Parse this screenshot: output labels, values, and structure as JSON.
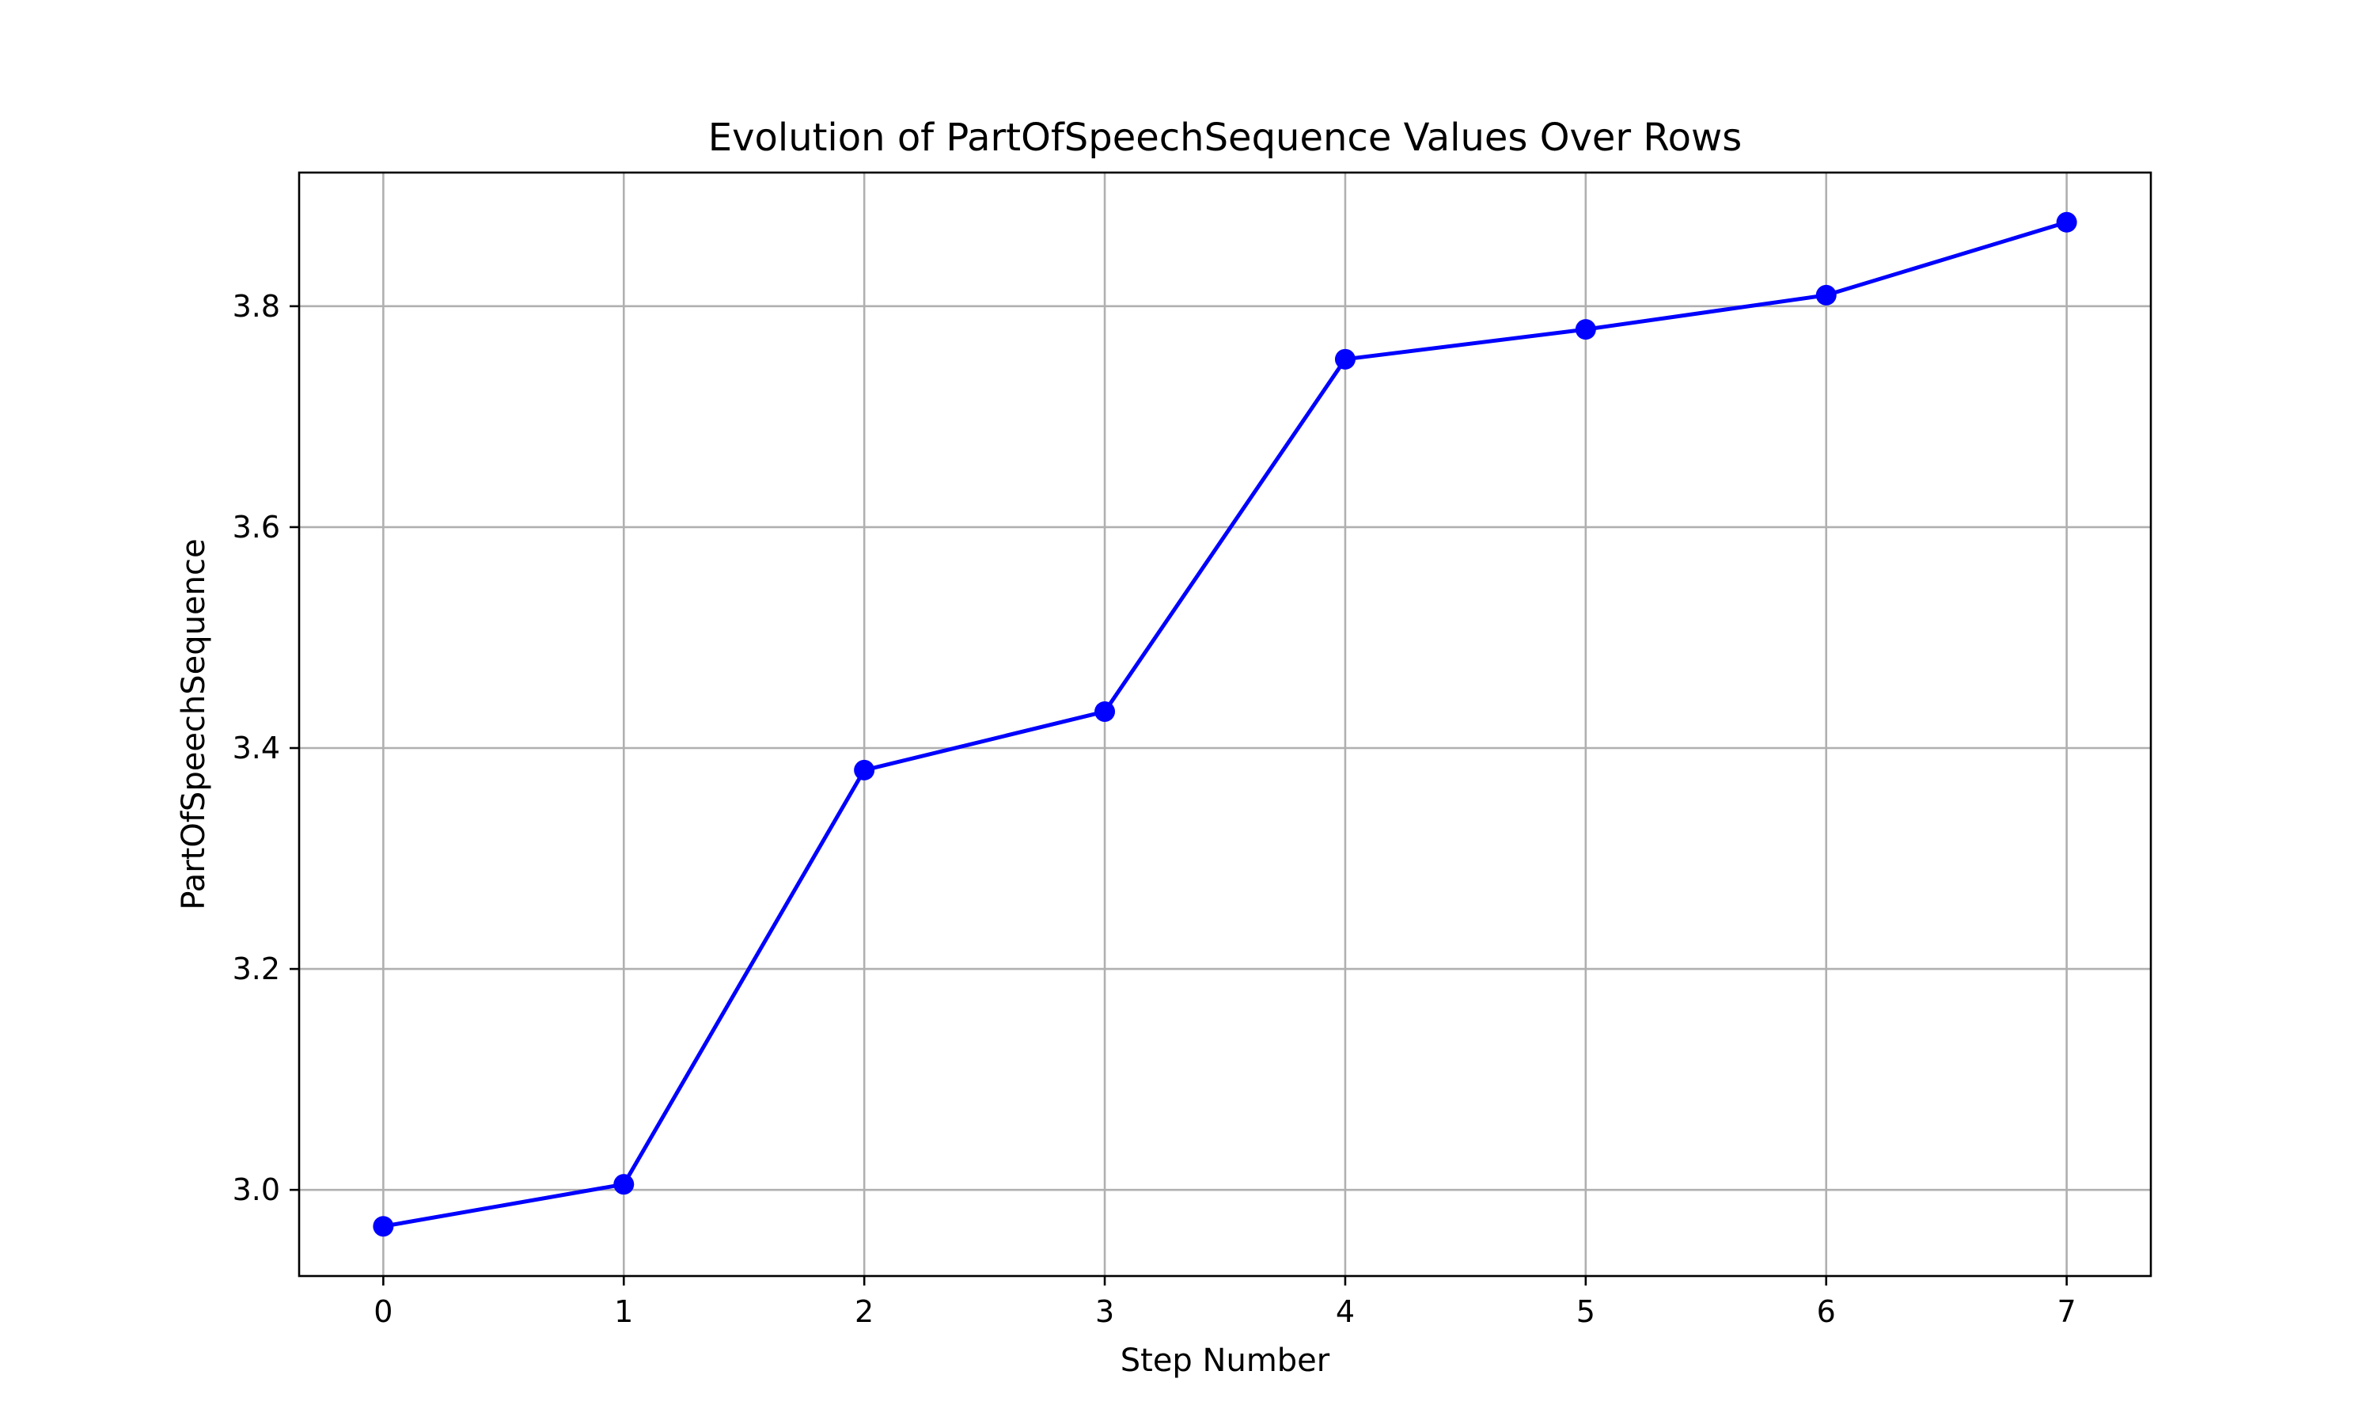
{
  "chart_data": {
    "type": "line",
    "title": "Evolution of PartOfSpeechSequence Values Over Rows",
    "xlabel": "Step Number",
    "ylabel": "PartOfSpeechSequence",
    "x": [
      0,
      1,
      2,
      3,
      4,
      5,
      6,
      7
    ],
    "series": [
      {
        "values": [
          2.967,
          3.005,
          3.38,
          3.433,
          3.752,
          3.779,
          3.81,
          3.876
        ],
        "color": "#0000ff",
        "marker": "circle"
      }
    ],
    "xlim": [
      -0.35,
      7.35
    ],
    "ylim": [
      2.922,
      3.921
    ],
    "xticks": [
      0,
      1,
      2,
      3,
      4,
      5,
      6,
      7
    ],
    "xtick_labels": [
      "0",
      "1",
      "2",
      "3",
      "4",
      "5",
      "6",
      "7"
    ],
    "yticks": [
      3.0,
      3.2,
      3.4,
      3.6,
      3.8
    ],
    "ytick_labels": [
      "3.0",
      "3.2",
      "3.4",
      "3.6",
      "3.8"
    ],
    "grid": true,
    "legend": false,
    "colors": {
      "line": "#0000ff",
      "grid": "#b0b0b0",
      "axes": "#000000",
      "background": "#ffffff"
    }
  }
}
